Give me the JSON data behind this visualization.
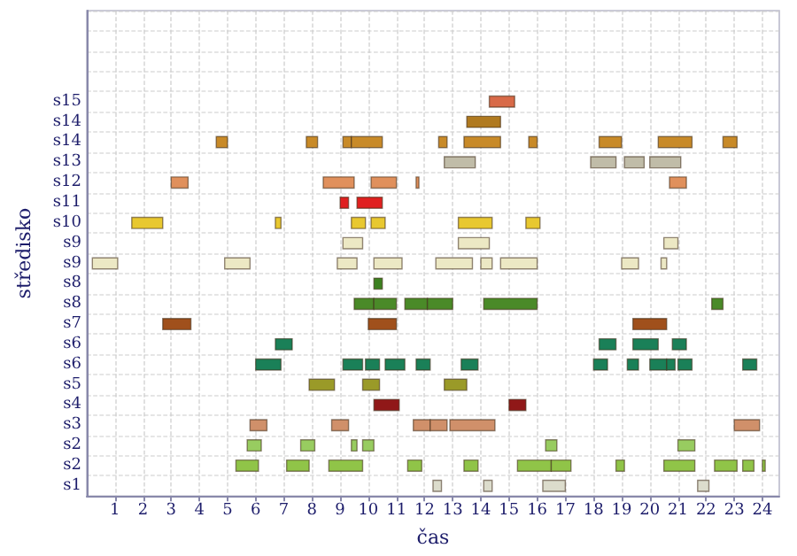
{
  "chart_data": {
    "type": "bar",
    "orientation": "horizontal",
    "xlabel": "čas",
    "ylabel": "středisko",
    "categories": [
      null,
      null,
      null,
      null,
      "s15",
      "s14",
      "s14",
      "s13",
      "s12",
      "s11",
      "s10",
      "s9",
      "s9",
      "s8",
      "s8",
      "s7",
      "s6",
      "s6",
      "s5",
      "s4",
      "s3",
      "s2",
      "s2",
      "s1"
    ],
    "series": [
      {
        "base": [
          null,
          null,
          null,
          null,
          14.3,
          13.5,
          4.6,
          12.7,
          3.0,
          9.0,
          1.6,
          9.1,
          0.2,
          10.2,
          9.5,
          2.7,
          6.7,
          6.0,
          7.9,
          10.2,
          5.8,
          5.7,
          5.3,
          12.3
        ],
        "values": [
          null,
          null,
          null,
          null,
          0.9,
          1.2,
          0.4,
          1.1,
          0.6,
          0.3,
          1.1,
          0.7,
          0.9,
          0.3,
          0.7,
          1.0,
          0.6,
          0.9,
          0.9,
          0.9,
          0.6,
          0.5,
          0.8,
          0.3
        ],
        "colors": [
          null,
          null,
          null,
          null,
          "#d86a48",
          "#b07a20",
          "#c88a28",
          "#c0bca8",
          "#e0905c",
          "#e02020",
          "#e8c830",
          "#ece8c4",
          "#ece8c4",
          "#3c8020",
          "#4a8a28",
          "#a0501c",
          "#1a8058",
          "#1a8058",
          "#9a9a28",
          "#901818",
          "#d0906a",
          "#98cc60",
          "#90c448",
          "#dcdccc"
        ]
      },
      {
        "base": [
          null,
          null,
          null,
          null,
          null,
          null,
          7.8,
          17.9,
          8.4,
          9.6,
          6.7,
          13.2,
          4.9,
          null,
          10.2,
          10.0,
          18.2,
          9.1,
          9.8,
          15.0,
          8.7,
          7.6,
          7.1,
          14.1
        ],
        "values": [
          null,
          null,
          null,
          null,
          null,
          null,
          0.4,
          0.9,
          1.1,
          0.9,
          0.2,
          1.1,
          0.9,
          null,
          0.8,
          1.0,
          0.6,
          0.7,
          0.6,
          0.6,
          0.6,
          0.5,
          0.8,
          0.3
        ],
        "colors": [
          null,
          null,
          null,
          null,
          null,
          null,
          "#c88a28",
          "#c0bca8",
          "#e0905c",
          "#e02020",
          "#e8c830",
          "#ece8c4",
          "#ece8c4",
          null,
          "#4a8a28",
          "#a0501c",
          "#1a8058",
          "#1a8058",
          "#9a9a28",
          "#901818",
          "#d0906a",
          "#98cc60",
          "#90c448",
          "#dcdccc"
        ]
      },
      {
        "base": [
          null,
          null,
          null,
          null,
          null,
          null,
          9.1,
          19.1,
          10.1,
          null,
          9.4,
          20.5,
          8.9,
          null,
          11.3,
          19.4,
          19.4,
          9.9,
          12.7,
          null,
          11.6,
          9.4,
          8.6,
          16.2
        ],
        "values": [
          null,
          null,
          null,
          null,
          null,
          null,
          0.3,
          0.7,
          0.9,
          null,
          0.5,
          0.5,
          0.7,
          null,
          0.8,
          1.2,
          0.9,
          0.5,
          0.8,
          null,
          0.6,
          0.2,
          1.2,
          0.8
        ],
        "colors": [
          null,
          null,
          null,
          null,
          null,
          null,
          "#c88a28",
          "#c0bca8",
          "#e0905c",
          null,
          "#e8c830",
          "#ece8c4",
          "#ece8c4",
          null,
          "#4a8a28",
          "#a0501c",
          "#1a8058",
          "#1a8058",
          "#9a9a28",
          null,
          "#d0906a",
          "#98cc60",
          "#90c448",
          "#dcdccc"
        ]
      },
      {
        "base": [
          null,
          null,
          null,
          null,
          null,
          null,
          9.4,
          20.0,
          11.7,
          null,
          10.1,
          null,
          10.2,
          null,
          12.1,
          null,
          20.8,
          10.6,
          null,
          null,
          12.2,
          9.8,
          11.4,
          21.7
        ],
        "values": [
          null,
          null,
          null,
          null,
          null,
          null,
          1.1,
          1.1,
          0.1,
          null,
          0.5,
          null,
          1.0,
          null,
          0.9,
          null,
          0.5,
          0.7,
          null,
          null,
          0.6,
          0.4,
          0.5,
          0.4
        ],
        "colors": [
          null,
          null,
          null,
          null,
          null,
          null,
          "#c88a28",
          "#c0bca8",
          "#e0905c",
          null,
          "#e8c830",
          null,
          "#ece8c4",
          null,
          "#4a8a28",
          null,
          "#1a8058",
          "#1a8058",
          null,
          null,
          "#d0906a",
          "#98cc60",
          "#90c448",
          "#dcdccc"
        ]
      },
      {
        "base": [
          null,
          null,
          null,
          null,
          null,
          null,
          12.5,
          null,
          20.7,
          null,
          13.2,
          null,
          12.4,
          null,
          14.1,
          null,
          null,
          11.7,
          null,
          null,
          12.9,
          16.3,
          13.4,
          null
        ],
        "values": [
          null,
          null,
          null,
          null,
          null,
          null,
          0.3,
          null,
          0.6,
          null,
          1.2,
          null,
          1.3,
          null,
          1.9,
          null,
          null,
          0.5,
          null,
          null,
          1.6,
          0.4,
          0.5,
          null
        ],
        "colors": [
          null,
          null,
          null,
          null,
          null,
          null,
          "#c88a28",
          null,
          "#e0905c",
          null,
          "#e8c830",
          null,
          "#ece8c4",
          null,
          "#4a8a28",
          null,
          null,
          "#1a8058",
          null,
          null,
          "#d0906a",
          "#98cc60",
          "#90c448",
          null
        ]
      },
      {
        "base": [
          null,
          null,
          null,
          null,
          null,
          null,
          13.4,
          null,
          null,
          null,
          15.6,
          null,
          14.0,
          null,
          22.2,
          null,
          null,
          13.3,
          null,
          null,
          23.0,
          21.0,
          15.3,
          null
        ],
        "values": [
          null,
          null,
          null,
          null,
          null,
          null,
          1.3,
          null,
          null,
          null,
          0.5,
          null,
          0.4,
          null,
          0.4,
          null,
          null,
          0.6,
          null,
          null,
          0.9,
          0.6,
          1.2,
          null
        ],
        "colors": [
          null,
          null,
          null,
          null,
          null,
          null,
          "#c88a28",
          null,
          null,
          null,
          "#e8c830",
          null,
          "#ece8c4",
          null,
          "#4a8a28",
          null,
          null,
          "#1a8058",
          null,
          null,
          "#d0906a",
          "#98cc60",
          "#90c448",
          null
        ]
      },
      {
        "base": [
          null,
          null,
          null,
          null,
          null,
          null,
          15.7,
          null,
          null,
          null,
          null,
          null,
          14.7,
          null,
          null,
          null,
          null,
          18.0,
          null,
          null,
          null,
          null,
          16.5,
          null
        ],
        "values": [
          null,
          null,
          null,
          null,
          null,
          null,
          0.3,
          null,
          null,
          null,
          null,
          null,
          1.3,
          null,
          null,
          null,
          null,
          0.5,
          null,
          null,
          null,
          null,
          0.7,
          null
        ],
        "colors": [
          null,
          null,
          null,
          null,
          null,
          null,
          "#c88a28",
          null,
          null,
          null,
          null,
          null,
          "#ece8c4",
          null,
          null,
          null,
          null,
          "#1a8058",
          null,
          null,
          null,
          null,
          "#90c448",
          null
        ]
      },
      {
        "base": [
          null,
          null,
          null,
          null,
          null,
          null,
          18.2,
          null,
          null,
          null,
          null,
          null,
          19.0,
          null,
          null,
          null,
          null,
          19.2,
          null,
          null,
          null,
          null,
          18.8,
          null
        ],
        "values": [
          null,
          null,
          null,
          null,
          null,
          null,
          0.8,
          null,
          null,
          null,
          null,
          null,
          0.6,
          null,
          null,
          null,
          null,
          0.4,
          null,
          null,
          null,
          null,
          0.3,
          null
        ],
        "colors": [
          null,
          null,
          null,
          null,
          null,
          null,
          "#c88a28",
          null,
          null,
          null,
          null,
          null,
          "#ece8c4",
          null,
          null,
          null,
          null,
          "#1a8058",
          null,
          null,
          null,
          null,
          "#90c448",
          null
        ]
      },
      {
        "base": [
          null,
          null,
          null,
          null,
          null,
          null,
          20.3,
          null,
          null,
          null,
          null,
          null,
          20.4,
          null,
          null,
          null,
          null,
          20.0,
          null,
          null,
          null,
          null,
          20.5,
          null
        ],
        "values": [
          null,
          null,
          null,
          null,
          null,
          null,
          1.2,
          null,
          null,
          null,
          null,
          null,
          0.2,
          null,
          null,
          null,
          null,
          0.6,
          null,
          null,
          null,
          null,
          1.1,
          null
        ],
        "colors": [
          null,
          null,
          null,
          null,
          null,
          null,
          "#c88a28",
          null,
          null,
          null,
          null,
          null,
          "#ece8c4",
          null,
          null,
          null,
          null,
          "#1a8058",
          null,
          null,
          null,
          null,
          "#90c448",
          null
        ]
      },
      {
        "base": [
          null,
          null,
          null,
          null,
          null,
          null,
          22.6,
          null,
          null,
          null,
          null,
          null,
          null,
          null,
          null,
          null,
          null,
          20.6,
          null,
          null,
          null,
          null,
          22.3,
          null
        ],
        "values": [
          null,
          null,
          null,
          null,
          null,
          null,
          0.5,
          null,
          null,
          null,
          null,
          null,
          null,
          null,
          null,
          null,
          null,
          0.3,
          null,
          null,
          null,
          null,
          0.8,
          null
        ],
        "colors": [
          null,
          null,
          null,
          null,
          null,
          null,
          "#c88a28",
          null,
          null,
          null,
          null,
          null,
          null,
          null,
          null,
          null,
          null,
          "#1a8058",
          null,
          null,
          null,
          null,
          "#90c448",
          null
        ]
      },
      {
        "base": [
          null,
          null,
          null,
          null,
          null,
          null,
          null,
          null,
          null,
          null,
          null,
          null,
          null,
          null,
          null,
          null,
          null,
          21.0,
          null,
          null,
          null,
          null,
          23.3,
          null
        ],
        "values": [
          null,
          null,
          null,
          null,
          null,
          null,
          null,
          null,
          null,
          null,
          null,
          null,
          null,
          null,
          null,
          null,
          null,
          0.5,
          null,
          null,
          null,
          null,
          0.4,
          null
        ],
        "colors": [
          null,
          null,
          null,
          null,
          null,
          null,
          null,
          null,
          null,
          null,
          null,
          null,
          null,
          null,
          null,
          null,
          null,
          "#1a8058",
          null,
          null,
          null,
          null,
          "#90c448",
          null
        ]
      },
      {
        "base": [
          null,
          null,
          null,
          null,
          null,
          null,
          null,
          null,
          null,
          null,
          null,
          null,
          null,
          null,
          null,
          null,
          null,
          23.3,
          null,
          null,
          null,
          null,
          24.0,
          null
        ],
        "values": [
          null,
          null,
          null,
          null,
          null,
          null,
          null,
          null,
          null,
          null,
          null,
          null,
          null,
          null,
          null,
          null,
          null,
          0.5,
          null,
          null,
          null,
          null,
          0.1,
          null
        ],
        "colors": [
          null,
          null,
          null,
          null,
          null,
          null,
          null,
          null,
          null,
          null,
          null,
          null,
          null,
          null,
          null,
          null,
          null,
          "#1a8058",
          null,
          null,
          null,
          null,
          "#90c448",
          null
        ]
      }
    ],
    "xlim": [
      0,
      24.6
    ],
    "xticks": [
      1,
      2,
      3,
      4,
      5,
      6,
      7,
      8,
      9,
      10,
      11,
      12,
      13,
      14,
      15,
      16,
      17,
      18,
      19,
      20,
      21,
      22,
      23,
      24
    ],
    "grid": true
  }
}
